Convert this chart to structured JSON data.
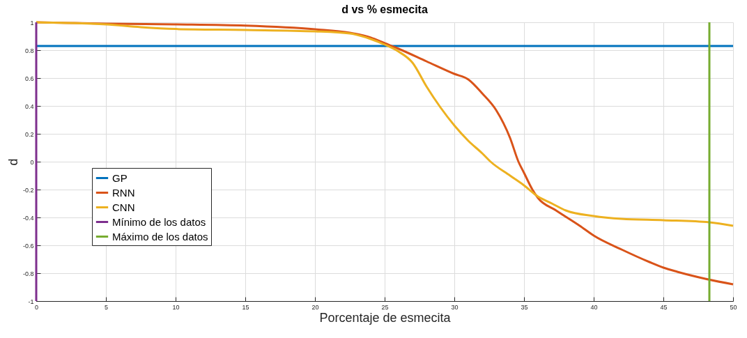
{
  "chart_data": {
    "type": "line",
    "title": "d vs % esmecita",
    "xlabel": "Porcentaje de esmecita",
    "ylabel": "d",
    "xlim": [
      0,
      50
    ],
    "ylim": [
      -1,
      1
    ],
    "xticks": [
      0,
      5,
      10,
      15,
      20,
      25,
      30,
      35,
      40,
      45,
      50
    ],
    "yticks": [
      -1,
      -0.8,
      -0.6,
      -0.4,
      -0.2,
      0,
      0.2,
      0.4,
      0.6,
      0.8,
      1
    ],
    "grid": true,
    "legend": "bottom left",
    "line_style": "solid",
    "series": [
      {
        "name": "GP",
        "color": "#0072bd",
        "x": [
          0,
          50
        ],
        "values": [
          0.83,
          0.83
        ]
      },
      {
        "name": "RNN",
        "color": "#d95319",
        "x": [
          0,
          2.5,
          5,
          10,
          15,
          20,
          22.5,
          24,
          25,
          26,
          28,
          30,
          31,
          32,
          33,
          34,
          34.6,
          35,
          35.6,
          36,
          37.3,
          39,
          40,
          42,
          44,
          45,
          46,
          48,
          50
        ],
        "values": [
          1,
          0.995,
          0.99,
          0.985,
          0.976,
          0.95,
          0.925,
          0.89,
          0.85,
          0.81,
          0.72,
          0.63,
          0.59,
          0.49,
          0.37,
          0.17,
          0,
          -0.08,
          -0.2,
          -0.26,
          -0.35,
          -0.46,
          -0.53,
          -0.63,
          -0.72,
          -0.76,
          -0.79,
          -0.84,
          -0.88
        ]
      },
      {
        "name": "CNN",
        "color": "#edb120",
        "x": [
          0,
          2.5,
          5,
          7.5,
          10,
          15,
          20,
          22.5,
          24,
          25,
          26,
          27,
          28,
          29,
          30,
          31,
          32,
          32.6,
          34,
          35,
          36,
          37,
          38,
          40,
          42,
          45,
          48.3,
          50
        ],
        "values": [
          1,
          0.995,
          0.985,
          0.965,
          0.952,
          0.945,
          0.935,
          0.92,
          0.88,
          0.84,
          0.79,
          0.71,
          0.54,
          0.39,
          0.26,
          0.15,
          0.06,
          0,
          -0.1,
          -0.17,
          -0.25,
          -0.3,
          -0.35,
          -0.39,
          -0.41,
          -0.42,
          -0.435,
          -0.46
        ]
      },
      {
        "name": "Mínimo de los datos",
        "color": "#7e2f8e",
        "x": [
          0,
          0
        ],
        "values": [
          -1,
          1
        ]
      },
      {
        "name": "Máximo de los datos",
        "color": "#77ac30",
        "x": [
          48.3,
          48.3
        ],
        "values": [
          -1,
          1
        ]
      }
    ]
  }
}
